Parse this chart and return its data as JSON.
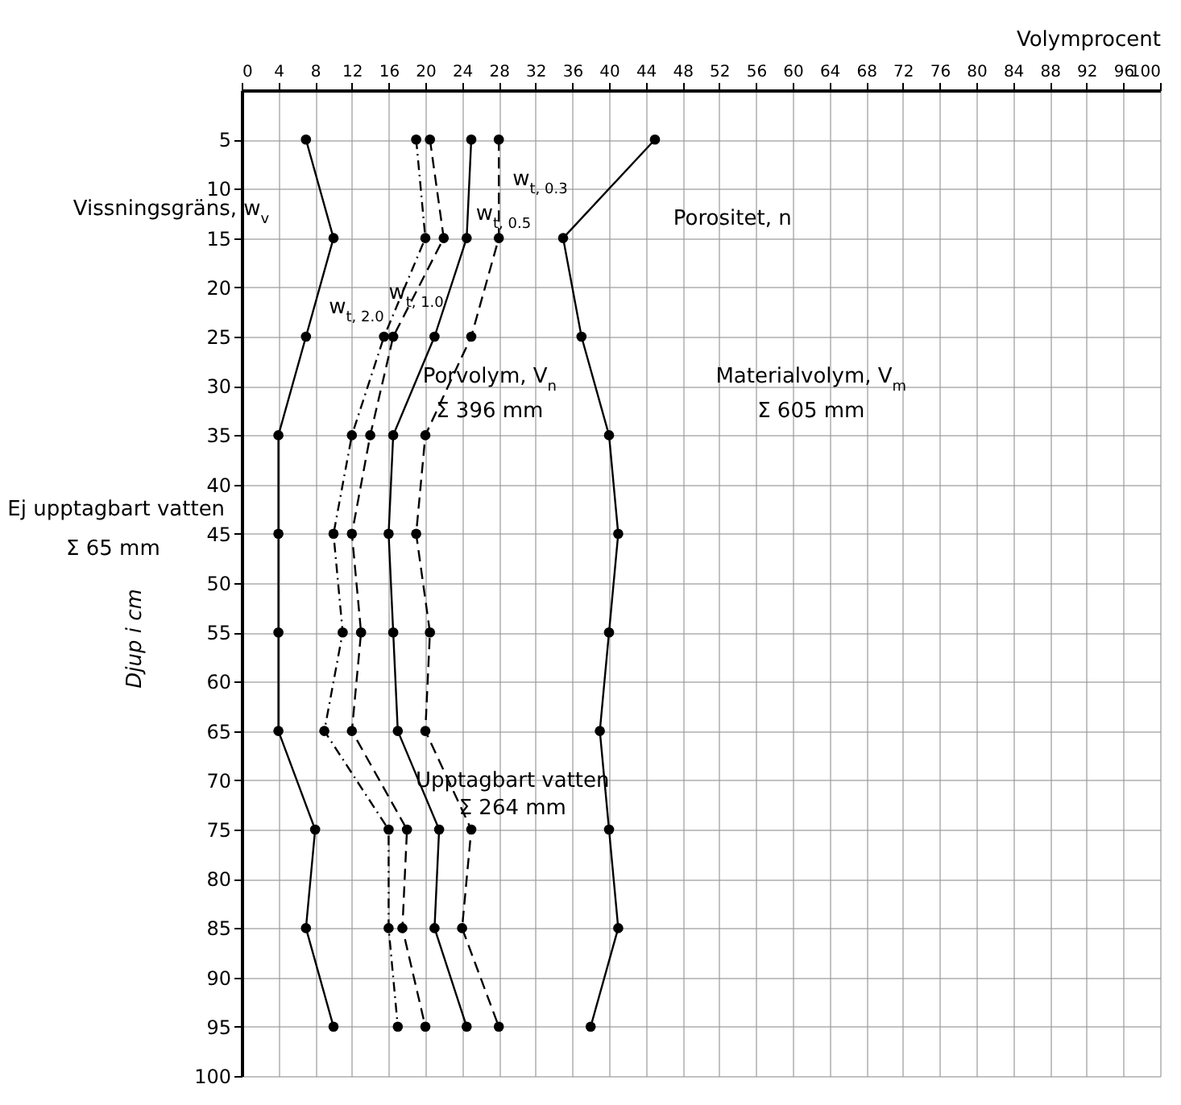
{
  "chart_data": {
    "type": "line",
    "xlabel": "Volymprocent",
    "ylabel": "Djup i cm",
    "x": [
      5,
      15,
      25,
      35,
      45,
      55,
      65,
      75,
      85,
      95
    ],
    "series": [
      {
        "name": "Vissningsgräns, w$_{v}$",
        "color": "#000000",
        "line_style": "solid",
        "values": [
          7,
          10,
          7,
          4,
          4,
          4,
          4,
          8,
          7,
          10
        ]
      },
      {
        "name": "w$_{t, 2.0}$",
        "color": "#000000",
        "line_style": "dotted",
        "values": [
          19,
          20,
          15.5,
          12,
          10,
          11,
          9,
          16,
          16,
          17
        ]
      },
      {
        "name": "w$_{t, 1.0}$",
        "color": "#000000",
        "line_style": "dashed",
        "values": [
          20.5,
          22,
          16.5,
          14,
          12,
          13,
          12,
          18,
          17.5,
          20
        ]
      },
      {
        "name": "w$_{t, 0.5}$",
        "color": "#000000",
        "line_style": "solid",
        "values": [
          25,
          24.5,
          21,
          16.5,
          16,
          16.5,
          17,
          21.5,
          21,
          24.5
        ]
      },
      {
        "name": "w$_{t, 0.3}$",
        "color": "#000000",
        "line_style": "dashed",
        "values": [
          28,
          28,
          25,
          20,
          19,
          20.5,
          20,
          25,
          24,
          28
        ]
      },
      {
        "name": "Porositet, n",
        "color": "#000000",
        "line_style": "solid",
        "values": [
          45,
          35,
          37,
          40,
          41,
          40,
          39,
          40,
          41,
          38
        ]
      }
    ],
    "orientation": "horizontal",
    "xlim": [
      0,
      100
    ],
    "xticks": [
      0,
      4,
      8,
      12,
      16,
      20,
      24,
      28,
      32,
      36,
      40,
      44,
      48,
      52,
      56,
      60,
      64,
      68,
      72,
      76,
      80,
      84,
      88,
      92,
      96,
      100
    ],
    "ylim": [
      100,
      0
    ],
    "yticks": [
      5,
      10,
      15,
      20,
      25,
      30,
      35,
      40,
      45,
      50,
      55,
      60,
      65,
      70,
      75,
      80,
      85,
      90,
      95,
      100
    ],
    "grid": true,
    "marker": "circle",
    "annotations": [
      "Porvolym, V$_{n}$",
      "Σ 396 mm",
      "Materialvolym, V$_{m}$",
      "Σ 605 mm",
      "Ej upptagbart vatten",
      "Σ 65 mm",
      "Upptagbart vatten",
      "Σ 264 mm"
    ]
  }
}
